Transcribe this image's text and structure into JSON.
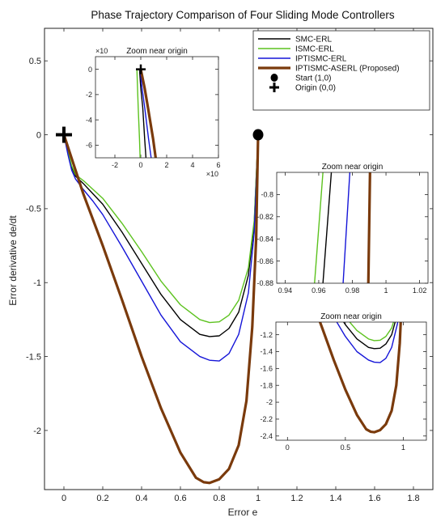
{
  "chart_data": {
    "type": "line",
    "title": "Phase Trajectory Comparison of Four Sliding Mode Controllers",
    "xlabel": "Error e",
    "ylabel": "Error derivative de/dt",
    "xlim": [
      -0.1,
      1.9
    ],
    "ylim": [
      -2.4,
      0.72
    ],
    "xticks": [
      0,
      0.2,
      0.4,
      0.6,
      0.8,
      1,
      1.2,
      1.4,
      1.6,
      1.8
    ],
    "xtick_labels": [
      "0",
      "0.2",
      "0.4",
      "0.6",
      "0.8",
      "1",
      "1.2",
      "1.4",
      "1.6",
      "1.8"
    ],
    "yticks": [
      0.5,
      0,
      -0.5,
      -1,
      -1.5,
      -2
    ],
    "ytick_labels": [
      "0.5",
      "0",
      "-0.5",
      "-1",
      "-1.5",
      "-2"
    ],
    "legend_position": "top-right",
    "series": [
      {
        "name": "SMC-ERL",
        "color": "#000000",
        "width": 1.4,
        "x": [
          1.0,
          0.98,
          0.95,
          0.9,
          0.85,
          0.8,
          0.75,
          0.7,
          0.6,
          0.5,
          0.4,
          0.3,
          0.2,
          0.15,
          0.1,
          0.06,
          0.04,
          0.02,
          0.0
        ],
        "y": [
          0.0,
          -0.6,
          -0.95,
          -1.2,
          -1.31,
          -1.36,
          -1.365,
          -1.35,
          -1.25,
          -1.08,
          -0.87,
          -0.66,
          -0.47,
          -0.4,
          -0.33,
          -0.28,
          -0.22,
          -0.12,
          0.0
        ]
      },
      {
        "name": "ISMC-ERL",
        "color": "#5cc21e",
        "width": 1.4,
        "x": [
          1.0,
          0.98,
          0.95,
          0.9,
          0.85,
          0.8,
          0.75,
          0.7,
          0.6,
          0.5,
          0.4,
          0.3,
          0.2,
          0.15,
          0.1,
          0.06,
          0.04,
          0.02,
          0.0
        ],
        "y": [
          0.0,
          -0.58,
          -0.9,
          -1.12,
          -1.22,
          -1.265,
          -1.27,
          -1.25,
          -1.15,
          -0.99,
          -0.79,
          -0.6,
          -0.43,
          -0.37,
          -0.31,
          -0.27,
          -0.21,
          -0.11,
          0.0
        ]
      },
      {
        "name": "IPTISMC-ERL",
        "color": "#1515d8",
        "width": 1.4,
        "x": [
          1.0,
          0.98,
          0.95,
          0.9,
          0.85,
          0.8,
          0.75,
          0.7,
          0.6,
          0.5,
          0.4,
          0.3,
          0.2,
          0.15,
          0.1,
          0.06,
          0.04,
          0.02,
          0.0
        ],
        "y": [
          0.0,
          -0.66,
          -1.07,
          -1.35,
          -1.48,
          -1.53,
          -1.525,
          -1.5,
          -1.4,
          -1.22,
          -0.99,
          -0.76,
          -0.54,
          -0.45,
          -0.37,
          -0.3,
          -0.24,
          -0.13,
          0.0
        ]
      },
      {
        "name": "IPTISMC-ASERL (Proposed)",
        "color": "#7a3a0c",
        "width": 3.2,
        "x": [
          1.0,
          0.99,
          0.97,
          0.94,
          0.9,
          0.85,
          0.8,
          0.75,
          0.72,
          0.68,
          0.6,
          0.5,
          0.4,
          0.3,
          0.2,
          0.1,
          0.05,
          0.02,
          0.0
        ],
        "y": [
          0.0,
          -0.7,
          -1.3,
          -1.8,
          -2.1,
          -2.26,
          -2.33,
          -2.355,
          -2.35,
          -2.32,
          -2.15,
          -1.85,
          -1.5,
          -1.12,
          -0.75,
          -0.4,
          -0.2,
          -0.08,
          0.0
        ]
      }
    ],
    "markers": [
      {
        "name": "Start (1,0)",
        "symbol": "circle",
        "x": 1.0,
        "y": 0.0
      },
      {
        "name": "Origin (0,0)",
        "symbol": "plus",
        "x": 0.0,
        "y": 0.0
      }
    ],
    "insets": [
      {
        "title": "Zoom near origin",
        "exponent_label": "×10^-3",
        "x_exponent_label": "×10^-3",
        "xlim": [
          -3.5,
          6
        ],
        "ylim": [
          -7,
          1
        ],
        "xticks": [
          -2,
          0,
          2,
          4,
          6
        ],
        "xtick_labels": [
          "-2",
          "0",
          "2",
          "4",
          "6"
        ],
        "yticks": [
          0,
          -2,
          -4,
          -6
        ],
        "ytick_labels": [
          "0",
          "-2",
          "-4",
          "-6"
        ],
        "lines": [
          {
            "series": "ISMC-ERL",
            "x": [
              -0.3,
              -0.25,
              -0.2,
              -0.1,
              -0.05
            ],
            "y": [
              0.0,
              -1.5,
              -3.0,
              -5.5,
              -7.0
            ]
          },
          {
            "series": "SMC-ERL",
            "x": [
              -0.1,
              0.0,
              0.15,
              0.3,
              0.4
            ],
            "y": [
              0.0,
              -1.5,
              -3.0,
              -5.5,
              -7.0
            ]
          },
          {
            "series": "IPTISMC-ERL",
            "x": [
              -0.05,
              0.1,
              0.3,
              0.6,
              0.8
            ],
            "y": [
              0.0,
              -1.5,
              -3.0,
              -5.5,
              -7.0
            ]
          },
          {
            "series": "IPTISMC-ASERL (Proposed)",
            "x": [
              0.0,
              0.3,
              0.55,
              0.95,
              1.15
            ],
            "y": [
              0.0,
              -1.5,
              -3.0,
              -5.5,
              -7.0
            ]
          }
        ]
      },
      {
        "title": "Zoom near origin",
        "xlim": [
          0.935,
          1.025
        ],
        "ylim": [
          -0.88,
          -0.78
        ],
        "xticks": [
          0.94,
          0.96,
          0.98,
          1,
          1.02
        ],
        "xtick_labels": [
          "0.94",
          "0.96",
          "0.98",
          "1",
          "1.02"
        ],
        "yticks": [
          -0.8,
          -0.82,
          -0.84,
          -0.86,
          -0.88
        ],
        "ytick_labels": [
          "-0.8",
          "-0.82",
          "-0.84",
          "-0.86",
          "-0.88"
        ],
        "lines": [
          {
            "series": "ISMC-ERL",
            "x": [
              0.9575,
              0.9625
            ],
            "y": [
              -0.88,
              -0.78
            ]
          },
          {
            "series": "SMC-ERL",
            "x": [
              0.9625,
              0.9675
            ],
            "y": [
              -0.88,
              -0.78
            ]
          },
          {
            "series": "IPTISMC-ERL",
            "x": [
              0.9745,
              0.9785
            ],
            "y": [
              -0.88,
              -0.78
            ]
          },
          {
            "series": "IPTISMC-ASERL (Proposed)",
            "x": [
              0.9895,
              0.9905
            ],
            "y": [
              -0.88,
              -0.78
            ]
          }
        ]
      },
      {
        "title": "Zoom near origin",
        "xlim": [
          -0.1,
          1.2
        ],
        "ylim": [
          -2.45,
          -1.05
        ],
        "xticks": [
          0,
          0.5,
          1
        ],
        "xtick_labels": [
          "0",
          "0.5",
          "1"
        ],
        "yticks": [
          -1.2,
          -1.4,
          -1.6,
          -1.8,
          -2,
          -2.2,
          -2.4
        ],
        "ytick_labels": [
          "-1.2",
          "-1.4",
          "-1.6",
          "-1.8",
          "-2",
          "-2.2",
          "-2.4"
        ],
        "lines": [
          {
            "series": "SMC-ERL"
          },
          {
            "series": "ISMC-ERL"
          },
          {
            "series": "IPTISMC-ERL"
          },
          {
            "series": "IPTISMC-ASERL (Proposed)"
          }
        ]
      }
    ]
  }
}
